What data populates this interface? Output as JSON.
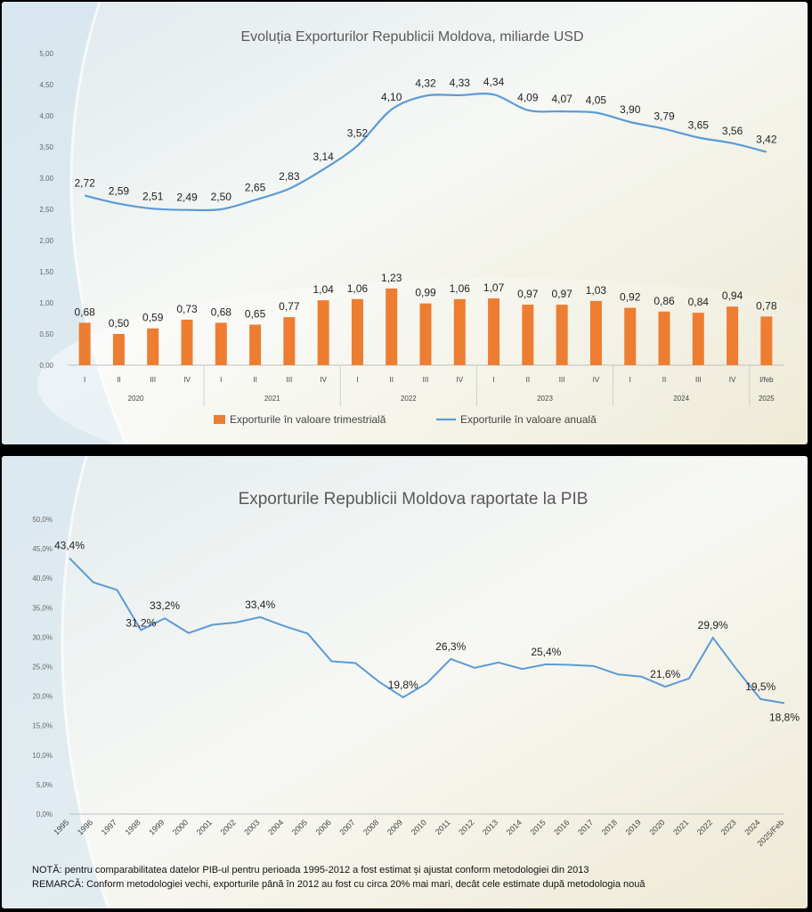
{
  "chart_data": [
    {
      "type": "bar",
      "title": "Evoluția Exporturilor Republicii Moldova, miliarde USD",
      "ylim": [
        0,
        5
      ],
      "yticks": [
        "0,00",
        "0,50",
        "1,00",
        "1,50",
        "2,00",
        "2,50",
        "3,00",
        "3,50",
        "4,00",
        "4,50",
        "5,00"
      ],
      "quarters": [
        "I",
        "II",
        "III",
        "IV",
        "I",
        "II",
        "III",
        "IV",
        "I",
        "II",
        "III",
        "IV",
        "I",
        "II",
        "III",
        "IV",
        "I",
        "II",
        "III",
        "IV",
        "I/feb"
      ],
      "years": [
        {
          "label": "2020",
          "span": 4
        },
        {
          "label": "2021",
          "span": 4
        },
        {
          "label": "2022",
          "span": 4
        },
        {
          "label": "2023",
          "span": 4
        },
        {
          "label": "2024",
          "span": 4
        },
        {
          "label": "2025",
          "span": 1
        }
      ],
      "series": [
        {
          "name": "Exporturile în valoare trimestrială",
          "kind": "bar",
          "color": "#ED7D31",
          "values": [
            0.68,
            0.5,
            0.59,
            0.73,
            0.68,
            0.65,
            0.77,
            1.04,
            1.06,
            1.23,
            0.99,
            1.06,
            1.07,
            0.97,
            0.97,
            1.03,
            0.92,
            0.86,
            0.84,
            0.94,
            0.78
          ],
          "labels": [
            "0,68",
            "0,50",
            "0,59",
            "0,73",
            "0,68",
            "0,65",
            "0,77",
            "1,04",
            "1,06",
            "1,23",
            "0,99",
            "1,06",
            "1,07",
            "0,97",
            "0,97",
            "1,03",
            "0,92",
            "0,86",
            "0,84",
            "0,94",
            "0,78"
          ]
        },
        {
          "name": "Exporturile în valoare anuală",
          "kind": "line",
          "color": "#5B9BD5",
          "values": [
            2.72,
            2.59,
            2.51,
            2.49,
            2.5,
            2.65,
            2.83,
            3.14,
            3.52,
            4.1,
            4.32,
            4.33,
            4.34,
            4.09,
            4.07,
            4.05,
            3.9,
            3.79,
            3.65,
            3.56,
            3.42
          ],
          "labels": [
            "2,72",
            "2,59",
            "2,51",
            "2,49",
            "2,50",
            "2,65",
            "2,83",
            "3,14",
            "3,52",
            "4,10",
            "4,32",
            "4,33",
            "4,34",
            "4,09",
            "4,07",
            "4,05",
            "3,90",
            "3,79",
            "3,65",
            "3,56",
            "3,42"
          ]
        }
      ],
      "legend_position": "bottom"
    },
    {
      "type": "line",
      "title": "Exporturile Republicii Moldova raportate la PIB",
      "ylim": [
        0,
        50
      ],
      "yticks": [
        "0,0%",
        "5,0%",
        "10,0%",
        "15,0%",
        "20,0%",
        "25,0%",
        "30,0%",
        "35,0%",
        "40,0%",
        "45,0%",
        "50,0%"
      ],
      "categories": [
        "1995",
        "1996",
        "1997",
        "1998",
        "1999",
        "2000",
        "2001",
        "2002",
        "2003",
        "2004",
        "2005",
        "2006",
        "2007",
        "2008",
        "2009",
        "2010",
        "2011",
        "2012",
        "2013",
        "2014",
        "2015",
        "2016",
        "2017",
        "2018",
        "2019",
        "2020",
        "2021",
        "2022",
        "2023",
        "2024",
        "2025/Feb"
      ],
      "series": [
        {
          "color": "#5B9BD5",
          "values": [
            43.4,
            39.3,
            38.0,
            31.2,
            33.2,
            30.7,
            32.1,
            32.5,
            33.4,
            31.9,
            30.6,
            25.9,
            25.6,
            22.4,
            19.8,
            22.2,
            26.3,
            24.8,
            25.7,
            24.6,
            25.4,
            25.3,
            25.1,
            23.7,
            23.3,
            21.6,
            23.0,
            29.9,
            24.5,
            19.5,
            18.8
          ]
        }
      ],
      "point_labels": [
        {
          "index": 0,
          "text": "43,4%"
        },
        {
          "index": 3,
          "text": "31,2%"
        },
        {
          "index": 4,
          "text": "33,2%"
        },
        {
          "index": 8,
          "text": "33,4%"
        },
        {
          "index": 14,
          "text": "19,8%"
        },
        {
          "index": 16,
          "text": "26,3%"
        },
        {
          "index": 20,
          "text": "25,4%"
        },
        {
          "index": 25,
          "text": "21,6%"
        },
        {
          "index": 27,
          "text": "29,9%"
        },
        {
          "index": 29,
          "text": "19,5%"
        },
        {
          "index": 30,
          "text": "18,8%"
        }
      ],
      "notes": [
        "NOTĂ: pentru comparabilitatea datelor PIB-ul pentru perioada 1995-2012 a fost estimat și ajustat conform metodologiei din 2013",
        "REMARCĂ: Conform metodologiei vechi, exporturile până în 2012 au fost cu circa 20% mai mari, decât cele estimate după metodologia nouă"
      ]
    }
  ]
}
